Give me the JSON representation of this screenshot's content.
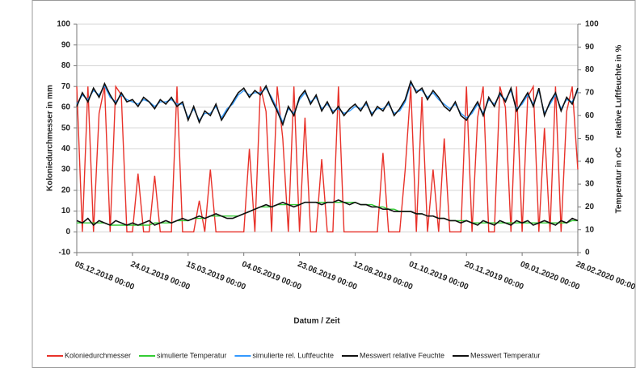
{
  "chart_data": {
    "type": "line",
    "ylabel": "Koloniedurchmesser in mm",
    "y2label": "Temperatur in oC    relative Luftfeuchte in %",
    "xlabel": "Datum / Zeit",
    "grid": true,
    "legend": "bottom",
    "xlim": [
      "05.12.2018 00:00",
      "28.02.2020 00:00"
    ],
    "xticks": [
      "05.12.2018 00:00",
      "24.01.2019 00:00",
      "15.03.2019 00:00",
      "04.05.2019 00:00",
      "23.06.2019 00:00",
      "12.08.2019 00:00",
      "01.10.2019 00:00",
      "20.11.2019 00:00",
      "09.01.2020 00:00",
      "28.02.2020 00:00"
    ],
    "ylim": [
      -10,
      100
    ],
    "yticks": [
      -10,
      0,
      10,
      20,
      30,
      40,
      50,
      60,
      70,
      80,
      90,
      100
    ],
    "y2lim": [
      0,
      100
    ],
    "y2ticks": [
      0,
      10,
      20,
      30,
      40,
      50,
      60,
      70,
      80,
      90,
      100
    ],
    "x": [
      "05.12.2018",
      "10.12.2018",
      "15.12.2018",
      "20.12.2018",
      "25.12.2018",
      "30.12.2018",
      "04.01.2019",
      "09.01.2019",
      "14.01.2019",
      "19.01.2019",
      "24.01.2019",
      "29.01.2019",
      "03.02.2019",
      "08.02.2019",
      "13.02.2019",
      "18.02.2019",
      "23.02.2019",
      "28.02.2019",
      "05.03.2019",
      "10.03.2019",
      "15.03.2019",
      "20.03.2019",
      "25.03.2019",
      "30.03.2019",
      "04.04.2019",
      "09.04.2019",
      "14.04.2019",
      "19.04.2019",
      "24.04.2019",
      "29.04.2019",
      "04.05.2019",
      "09.05.2019",
      "14.05.2019",
      "19.05.2019",
      "24.05.2019",
      "29.05.2019",
      "03.06.2019",
      "08.06.2019",
      "13.06.2019",
      "18.06.2019",
      "23.06.2019",
      "28.06.2019",
      "03.07.2019",
      "08.07.2019",
      "13.07.2019",
      "18.07.2019",
      "23.07.2019",
      "28.07.2019",
      "02.08.2019",
      "07.08.2019",
      "12.08.2019",
      "17.08.2019",
      "22.08.2019",
      "27.08.2019",
      "01.09.2019",
      "06.09.2019",
      "11.09.2019",
      "16.09.2019",
      "21.09.2019",
      "26.09.2019",
      "01.10.2019",
      "06.10.2019",
      "11.10.2019",
      "16.10.2019",
      "21.10.2019",
      "26.10.2019",
      "31.10.2019",
      "05.11.2019",
      "10.11.2019",
      "15.11.2019",
      "20.11.2019",
      "25.11.2019",
      "30.11.2019",
      "05.12.2019",
      "10.12.2019",
      "15.12.2019",
      "20.12.2019",
      "25.12.2019",
      "30.12.2019",
      "04.01.2020",
      "09.01.2020",
      "14.01.2020",
      "19.01.2020",
      "24.01.2020",
      "29.01.2020",
      "03.02.2020",
      "08.02.2020",
      "13.02.2020",
      "18.02.2020",
      "23.02.2020",
      "28.02.2020"
    ],
    "series": [
      {
        "name": "Koloniedurchmesser",
        "color": "#e8322a",
        "axis": "y",
        "values": [
          70,
          0,
          70,
          0,
          57,
          70,
          0,
          70,
          66,
          0,
          0,
          28,
          0,
          0,
          27,
          0,
          0,
          0,
          70,
          0,
          0,
          0,
          15,
          0,
          30,
          0,
          0,
          0,
          0,
          0,
          0,
          40,
          0,
          70,
          58,
          0,
          70,
          45,
          0,
          70,
          0,
          55,
          0,
          0,
          35,
          0,
          0,
          70,
          0,
          0,
          0,
          0,
          0,
          0,
          0,
          38,
          0,
          0,
          0,
          30,
          70,
          0,
          65,
          0,
          30,
          0,
          45,
          0,
          0,
          0,
          70,
          0,
          55,
          70,
          0,
          0,
          70,
          60,
          0,
          70,
          0,
          65,
          70,
          0,
          50,
          0,
          70,
          0,
          58,
          70,
          30
        ]
      },
      {
        "name": "simulierte Temperatur",
        "color": "#33cc33",
        "axis": "y2",
        "values": [
          13,
          13,
          13,
          13,
          13,
          13,
          12,
          12,
          12,
          12,
          12,
          12,
          12,
          12,
          13,
          13,
          13,
          13,
          14,
          14,
          14,
          15,
          15,
          15,
          16,
          16,
          16,
          16,
          16,
          16,
          17,
          18,
          19,
          20,
          20,
          20,
          21,
          21,
          21,
          21,
          21,
          22,
          22,
          22,
          22,
          22,
          22,
          22,
          22,
          22,
          22,
          21,
          21,
          21,
          20,
          20,
          19,
          19,
          18,
          18,
          18,
          17,
          17,
          16,
          16,
          15,
          15,
          14,
          14,
          14,
          14,
          13,
          13,
          13,
          13,
          13,
          13,
          13,
          13,
          13,
          13,
          13,
          13,
          13,
          13,
          13,
          13,
          13,
          13,
          14,
          14
        ]
      },
      {
        "name": "simulierte rel. Luftfeuchte",
        "color": "#3399ff",
        "axis": "y2",
        "values": [
          65,
          69,
          67,
          71,
          69,
          73,
          68,
          66,
          69,
          67,
          66,
          65,
          67,
          66,
          64,
          66,
          66,
          67,
          65,
          65,
          59,
          63,
          58,
          61,
          61,
          64,
          59,
          63,
          65,
          69,
          71,
          69,
          70,
          70,
          72,
          68,
          63,
          57,
          63,
          61,
          67,
          70,
          66,
          68,
          63,
          65,
          62,
          63,
          61,
          62,
          64,
          63,
          65,
          61,
          63,
          63,
          65,
          61,
          62,
          66,
          74,
          71,
          71,
          68,
          70,
          67,
          65,
          63,
          65,
          61,
          59,
          61,
          65,
          61,
          67,
          65,
          69,
          67,
          71,
          63,
          65,
          69,
          65,
          71,
          61,
          65,
          69,
          63,
          67,
          66,
          71
        ]
      },
      {
        "name": "Messwert relative Feuchte",
        "color": "#111111",
        "axis": "y2",
        "values": [
          64,
          70,
          66,
          72,
          68,
          74,
          69,
          65,
          70,
          66,
          67,
          64,
          68,
          66,
          63,
          67,
          65,
          68,
          64,
          66,
          58,
          64,
          57,
          62,
          60,
          65,
          58,
          62,
          66,
          70,
          72,
          68,
          71,
          69,
          73,
          67,
          62,
          56,
          64,
          60,
          68,
          71,
          65,
          69,
          62,
          66,
          61,
          64,
          60,
          63,
          65,
          62,
          66,
          60,
          64,
          62,
          66,
          60,
          63,
          67,
          75,
          70,
          72,
          67,
          71,
          68,
          64,
          62,
          66,
          60,
          58,
          62,
          66,
          60,
          68,
          64,
          70,
          66,
          72,
          62,
          66,
          70,
          64,
          72,
          60,
          66,
          70,
          62,
          68,
          65,
          72
        ]
      },
      {
        "name": "Messwert Temperatur",
        "color": "#111111",
        "axis": "y2",
        "values": [
          14,
          13,
          15,
          12,
          14,
          13,
          12,
          14,
          13,
          12,
          13,
          12,
          13,
          14,
          12,
          13,
          14,
          13,
          14,
          15,
          14,
          15,
          16,
          15,
          16,
          17,
          16,
          15,
          15,
          16,
          17,
          18,
          19,
          20,
          21,
          20,
          21,
          22,
          21,
          20,
          21,
          22,
          22,
          22,
          21,
          22,
          22,
          23,
          22,
          21,
          22,
          21,
          21,
          20,
          20,
          19,
          19,
          18,
          18,
          18,
          18,
          17,
          17,
          16,
          16,
          15,
          15,
          14,
          14,
          13,
          14,
          13,
          12,
          14,
          13,
          12,
          14,
          13,
          12,
          14,
          13,
          14,
          12,
          13,
          14,
          13,
          12,
          14,
          13,
          15,
          14
        ]
      }
    ]
  }
}
